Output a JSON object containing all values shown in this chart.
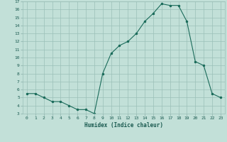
{
  "x": [
    0,
    1,
    2,
    3,
    4,
    5,
    6,
    7,
    8,
    9,
    10,
    11,
    12,
    13,
    14,
    15,
    16,
    17,
    18,
    19,
    20,
    21,
    22,
    23
  ],
  "y": [
    5.5,
    5.5,
    5.0,
    4.5,
    4.5,
    4.0,
    3.5,
    3.5,
    3.0,
    8.0,
    10.5,
    11.5,
    12.0,
    13.0,
    14.5,
    15.5,
    16.7,
    16.5,
    16.5,
    14.5,
    9.5,
    9.0,
    5.5,
    5.0
  ],
  "xlabel": "Humidex (Indice chaleur)",
  "ylim": [
    3,
    17
  ],
  "xlim": [
    -0.5,
    23.5
  ],
  "yticks": [
    3,
    4,
    5,
    6,
    7,
    8,
    9,
    10,
    11,
    12,
    13,
    14,
    15,
    16,
    17
  ],
  "xticks": [
    0,
    1,
    2,
    3,
    4,
    5,
    6,
    7,
    8,
    9,
    10,
    11,
    12,
    13,
    14,
    15,
    16,
    17,
    18,
    19,
    20,
    21,
    22,
    23
  ],
  "line_color": "#1a6b5a",
  "marker_color": "#1a6b5a",
  "bg_color": "#c2e0d8",
  "grid_color": "#9bbfb8",
  "font_color": "#1a5a50"
}
